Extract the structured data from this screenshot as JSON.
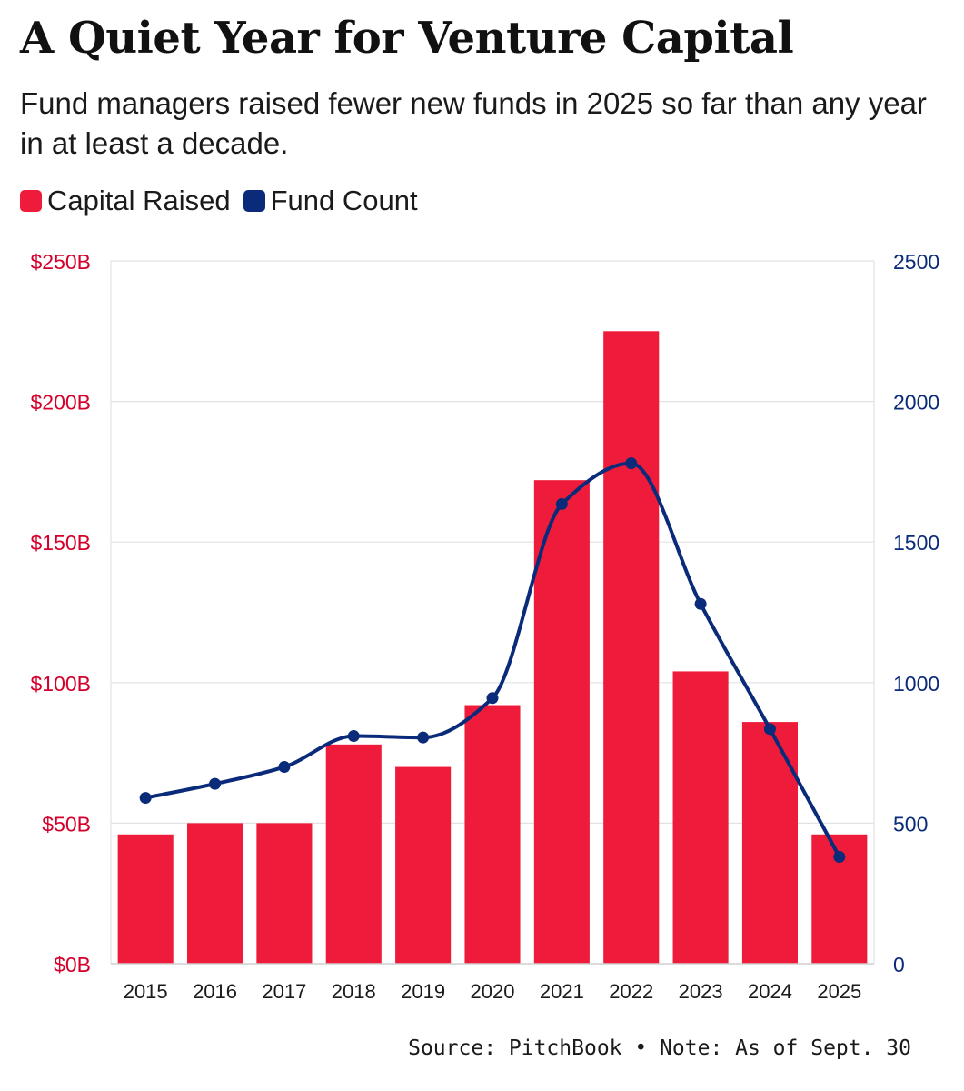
{
  "title": "A Quiet Year for Venture Capital",
  "subtitle": "Fund managers raised fewer new funds in 2025 so far than any year in at least a decade.",
  "legend": {
    "capital": "Capital Raised",
    "count": "Fund Count"
  },
  "source": "Source: PitchBook • Note: As of Sept. 30",
  "colors": {
    "capital": "#ee1c3a",
    "count": "#0a2a7a",
    "left_axis": "#d4002a",
    "right_axis": "#0a2a7a",
    "grid": "#e2e2e2"
  },
  "chart_data": {
    "type": "bar",
    "categories": [
      "2015",
      "2016",
      "2017",
      "2018",
      "2019",
      "2020",
      "2021",
      "2022",
      "2023",
      "2024",
      "2025"
    ],
    "series": [
      {
        "name": "Capital Raised",
        "type": "bar",
        "axis": "left",
        "unit": "$B",
        "values": [
          46,
          50,
          50,
          78,
          70,
          92,
          172,
          225,
          104,
          86,
          46
        ]
      },
      {
        "name": "Fund Count",
        "type": "line",
        "axis": "right",
        "values": [
          590,
          640,
          700,
          810,
          805,
          945,
          1635,
          1780,
          1280,
          835,
          380
        ]
      }
    ],
    "y_left": {
      "min": 0,
      "max": 250,
      "ticks": [
        "$0B",
        "$50B",
        "$100B",
        "$150B",
        "$200B",
        "$250B"
      ]
    },
    "y_right": {
      "min": 0,
      "max": 2500,
      "ticks": [
        "0",
        "500",
        "1000",
        "1500",
        "2000",
        "2500"
      ]
    },
    "grid": true,
    "legend_position": "top-left"
  }
}
